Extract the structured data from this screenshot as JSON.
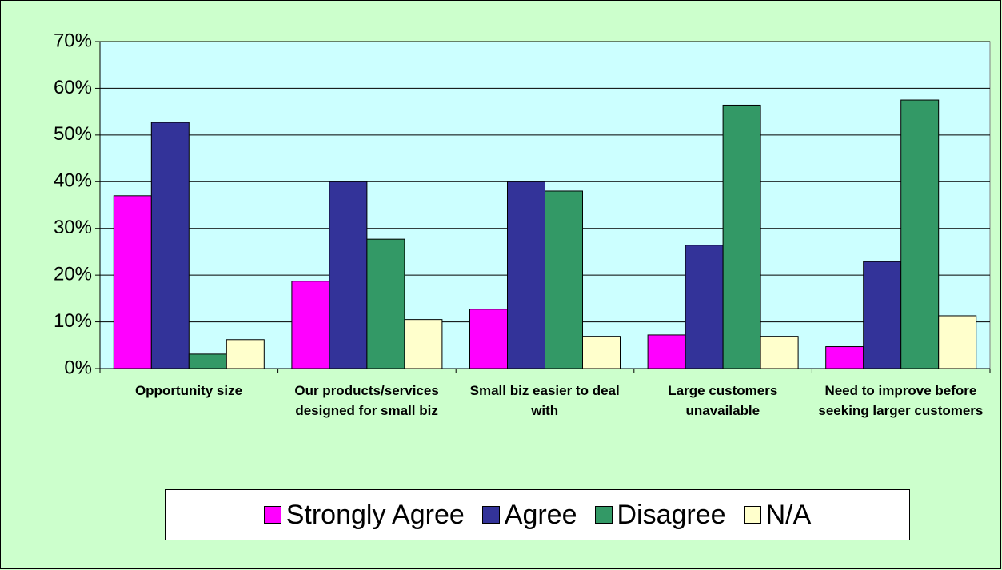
{
  "chart_data": {
    "type": "bar",
    "categories": [
      "Opportunity size",
      "Our products/services designed for small biz",
      "Small biz easier to deal with",
      "Large customers unavailable",
      "Need to improve before seeking larger customers"
    ],
    "series": [
      {
        "name": "Strongly Agree",
        "color": "#ff00ff",
        "values": [
          37,
          18.7,
          12.7,
          7.2,
          4.7
        ]
      },
      {
        "name": "Agree",
        "color": "#333399",
        "values": [
          52.7,
          40,
          40,
          26.4,
          22.9
        ]
      },
      {
        "name": "Disagree",
        "color": "#339966",
        "values": [
          3.1,
          27.7,
          38,
          56.4,
          57.5
        ]
      },
      {
        "name": "N/A",
        "color": "#ffffcc",
        "values": [
          6.2,
          10.5,
          6.9,
          6.9,
          11.3
        ]
      }
    ],
    "ylim": [
      0,
      70
    ],
    "yticks": [
      {
        "value": 0,
        "label": "0%"
      },
      {
        "value": 10,
        "label": "10%"
      },
      {
        "value": 20,
        "label": "20%"
      },
      {
        "value": 30,
        "label": "30%"
      },
      {
        "value": 40,
        "label": "40%"
      },
      {
        "value": 50,
        "label": "50%"
      },
      {
        "value": 60,
        "label": "60%"
      },
      {
        "value": 70,
        "label": "70%"
      }
    ],
    "grid": true,
    "legend": "bottom"
  }
}
